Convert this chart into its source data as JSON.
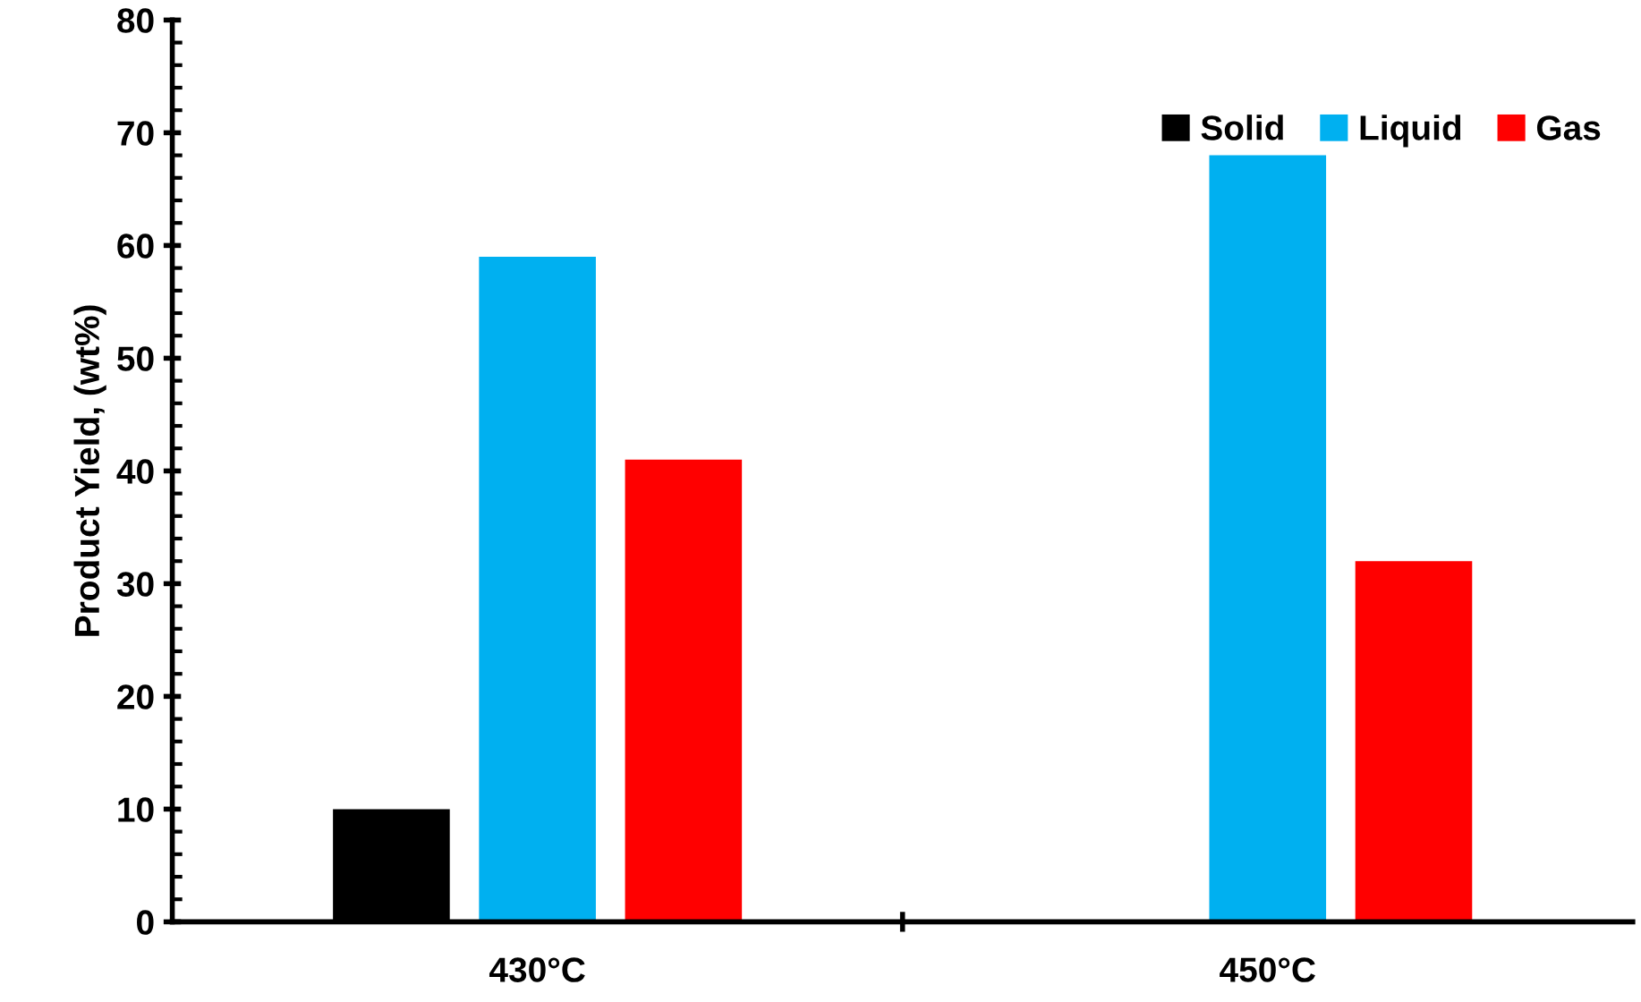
{
  "chart_data": {
    "type": "bar",
    "ylabel": "Product Yield, (wt%)",
    "categories": [
      "430°C",
      "450°C"
    ],
    "series": [
      {
        "name": "Solid",
        "color": "#000000",
        "values": [
          10,
          null
        ]
      },
      {
        "name": "Liquid",
        "color": "#00b0f0",
        "values": [
          59,
          68
        ]
      },
      {
        "name": "Gas",
        "color": "#ff0000",
        "values": [
          41,
          32
        ]
      }
    ],
    "ylim": [
      0,
      80
    ],
    "yticks": [
      0,
      10,
      20,
      30,
      40,
      50,
      60,
      70,
      80
    ],
    "grid": false,
    "legend": "top right"
  }
}
